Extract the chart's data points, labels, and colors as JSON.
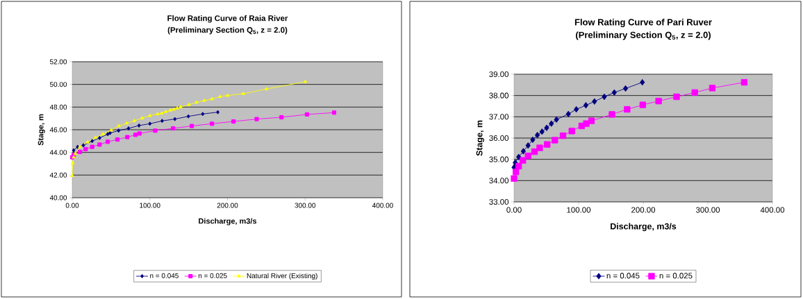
{
  "chart_data": [
    {
      "type": "line",
      "title": "Flow Rating Curve of Raia River",
      "subtitle": "(Preliminary Section Q$_{5}$, z = 2.0)",
      "xlabel": "Discharge, m3/s",
      "ylabel": "Stage, m",
      "xlim": [
        0,
        400
      ],
      "xticks": [
        {
          "value": 0,
          "label": "0.00"
        },
        {
          "value": 100,
          "label": "100.00"
        },
        {
          "value": 200,
          "label": "200.00"
        },
        {
          "value": 300,
          "label": "300.00"
        },
        {
          "value": 400,
          "label": "400.00"
        }
      ],
      "ylim": [
        40,
        52
      ],
      "yticks": [
        {
          "value": 40,
          "label": "40.00"
        },
        {
          "value": 42,
          "label": "42.00"
        },
        {
          "value": 44,
          "label": "44.00"
        },
        {
          "value": 46,
          "label": "46.00"
        },
        {
          "value": 48,
          "label": "48.00"
        },
        {
          "value": 50,
          "label": "50.00"
        },
        {
          "value": 52,
          "label": "52.00"
        }
      ],
      "grid": "y",
      "legend": "bottom",
      "series": [
        {
          "name": "n = 0.045",
          "color": "#000080",
          "marker": "diamond",
          "x": [
            1.8,
            6.9,
            14.3,
            25.7,
            35.2,
            45.7,
            48.7,
            59.7,
            72.5,
            86,
            100,
            115.8,
            132.2,
            149.6,
            168.1,
            187.5
          ],
          "values": [
            44.18,
            44.49,
            44.63,
            45.0,
            45.27,
            45.61,
            45.71,
            45.92,
            46.12,
            46.37,
            46.53,
            46.78,
            46.94,
            47.18,
            47.39,
            47.55
          ]
        },
        {
          "name": "n = 0.025",
          "color": "#ff00ff",
          "marker": "square",
          "x": [
            0,
            1.8,
            9.9,
            17.3,
            25.7,
            35.2,
            45.7,
            58.2,
            71,
            81.5,
            86.6,
            106.9,
            129.9,
            154,
            180,
            207.8,
            237.6,
            269.6,
            302.4,
            337.3
          ],
          "values": [
            43.57,
            43.78,
            44.04,
            44.29,
            44.49,
            44.69,
            44.94,
            45.14,
            45.35,
            45.55,
            45.67,
            45.92,
            46.12,
            46.33,
            46.53,
            46.73,
            46.94,
            47.1,
            47.35,
            47.51
          ]
        },
        {
          "name": "Natural River (Existing)",
          "color": "#ffff00",
          "marker": "triangle",
          "x": [
            0,
            0.6,
            1.8,
            3.9,
            9.9,
            19.7,
            29.9,
            39.7,
            50.1,
            60,
            70.1,
            80,
            90.1,
            100,
            109.9,
            115.2,
            120.3,
            126.3,
            130.7,
            135.2,
            139.7,
            150.1,
            160,
            170.1,
            180,
            190.4,
            200,
            220.3,
            250.1,
            300.3
          ],
          "values": [
            41.94,
            43.06,
            43.57,
            43.88,
            44.49,
            44.9,
            45.31,
            45.61,
            45.96,
            46.33,
            46.57,
            46.78,
            47.02,
            47.24,
            47.39,
            47.45,
            47.59,
            47.71,
            47.8,
            47.9,
            48.0,
            48.2,
            48.41,
            48.57,
            48.71,
            48.92,
            49.02,
            49.18,
            49.59,
            50.24
          ]
        }
      ]
    },
    {
      "type": "line",
      "title": "Flow Rating Curve of Pari Ruver",
      "subtitle": "(Preliminary Section Q$_{5}$, z = 2.0)",
      "xlabel": "Discharge, m3/s",
      "ylabel": "Stage, m",
      "xlim": [
        0,
        400
      ],
      "xticks": [
        {
          "value": 0,
          "label": "0.00"
        },
        {
          "value": 100,
          "label": "100.00"
        },
        {
          "value": 200,
          "label": "200.00"
        },
        {
          "value": 300,
          "label": "300.00"
        },
        {
          "value": 400,
          "label": "400.00"
        }
      ],
      "ylim": [
        33,
        39
      ],
      "yticks": [
        {
          "value": 33,
          "label": "33.00"
        },
        {
          "value": 34,
          "label": "34.00"
        },
        {
          "value": 35,
          "label": "35.00"
        },
        {
          "value": 36,
          "label": "36.00"
        },
        {
          "value": 37,
          "label": "37.00"
        },
        {
          "value": 38,
          "label": "38.00"
        },
        {
          "value": 39,
          "label": "39.00"
        }
      ],
      "grid": "y",
      "legend": "bottom",
      "series": [
        {
          "name": "n = 0.045",
          "color": "#000080",
          "marker": "diamond",
          "x": [
            0,
            1.8,
            7.2,
            14.4,
            21.7,
            28.9,
            36.1,
            43.3,
            50.5,
            57.8,
            65.7,
            84.1,
            96.4,
            111.2,
            124.5,
            139.7,
            155.2,
            172.6,
            198.6
          ],
          "values": [
            34.62,
            34.84,
            35.11,
            35.38,
            35.65,
            35.92,
            36.14,
            36.3,
            36.48,
            36.68,
            36.87,
            37.13,
            37.35,
            37.54,
            37.72,
            37.94,
            38.14,
            38.33,
            38.62
          ]
        },
        {
          "name": "n = 0.025",
          "color": "#ff00ff",
          "marker": "square",
          "x": [
            0,
            2.9,
            7.2,
            13.7,
            21.7,
            31.8,
            39.7,
            51.3,
            63.2,
            75.8,
            89.5,
            104.7,
            111.9,
            119.9,
            151.6,
            175.1,
            199.3,
            223.8,
            251.6,
            279.8,
            306.9,
            356.3
          ],
          "values": [
            34.1,
            34.41,
            34.68,
            34.95,
            35.16,
            35.36,
            35.54,
            35.7,
            35.9,
            36.11,
            36.33,
            36.57,
            36.68,
            36.81,
            37.11,
            37.35,
            37.56,
            37.74,
            37.94,
            38.14,
            38.35,
            38.62
          ]
        }
      ]
    }
  ]
}
